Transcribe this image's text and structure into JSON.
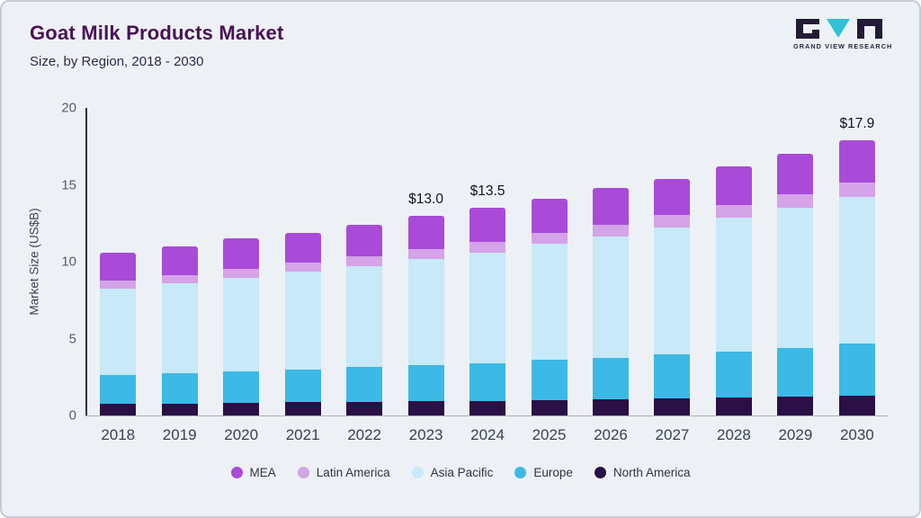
{
  "header": {
    "title": "Goat Milk Products Market",
    "subtitle": "Size, by Region, 2018 - 2030"
  },
  "logo": {
    "text": "GRAND VIEW RESEARCH",
    "accent_color": "#2fc1d6",
    "dark_color": "#231a36"
  },
  "chart_data": {
    "type": "bar",
    "stacked": true,
    "title": "Goat Milk Products Market Size, by Region, 2018 - 2030",
    "ylabel": "Market Size (US$B)",
    "ylim": [
      0,
      20
    ],
    "yticks": [
      0,
      5,
      10,
      15,
      20
    ],
    "grid": false,
    "legend_position": "bottom",
    "categories": [
      "2018",
      "2019",
      "2020",
      "2021",
      "2022",
      "2023",
      "2024",
      "2025",
      "2026",
      "2027",
      "2028",
      "2029",
      "2030"
    ],
    "series": [
      {
        "name": "North America",
        "color": "#2a1045",
        "values": [
          0.75,
          0.78,
          0.82,
          0.85,
          0.88,
          0.92,
          0.96,
          1.0,
          1.05,
          1.1,
          1.15,
          1.21,
          1.27
        ]
      },
      {
        "name": "Europe",
        "color": "#3cb9e6",
        "values": [
          1.9,
          1.95,
          2.05,
          2.15,
          2.25,
          2.35,
          2.45,
          2.6,
          2.7,
          2.85,
          3.0,
          3.2,
          3.4
        ]
      },
      {
        "name": "Asia Pacific",
        "color": "#c7e9f8",
        "values": [
          5.6,
          5.85,
          6.1,
          6.35,
          6.6,
          6.9,
          7.2,
          7.55,
          7.9,
          8.3,
          8.7,
          9.1,
          9.55
        ]
      },
      {
        "name": "Latin America",
        "color": "#d4a3e8",
        "values": [
          0.5,
          0.52,
          0.55,
          0.58,
          0.61,
          0.64,
          0.67,
          0.71,
          0.75,
          0.79,
          0.84,
          0.89,
          0.94
        ]
      },
      {
        "name": "MEA",
        "color": "#a94bd8",
        "values": [
          1.85,
          1.9,
          1.98,
          1.97,
          2.06,
          2.19,
          2.22,
          2.24,
          2.4,
          2.36,
          2.51,
          2.6,
          2.74
        ]
      }
    ],
    "totals": [
      10.6,
      11.0,
      11.5,
      11.9,
      12.4,
      13.0,
      13.5,
      14.1,
      14.8,
      15.4,
      16.2,
      17.0,
      17.9
    ],
    "annotations": {
      "2023": "$13.0",
      "2024": "$13.5",
      "2030": "$17.9"
    },
    "legend_order": [
      "MEA",
      "Latin America",
      "Asia Pacific",
      "Europe",
      "North America"
    ]
  }
}
